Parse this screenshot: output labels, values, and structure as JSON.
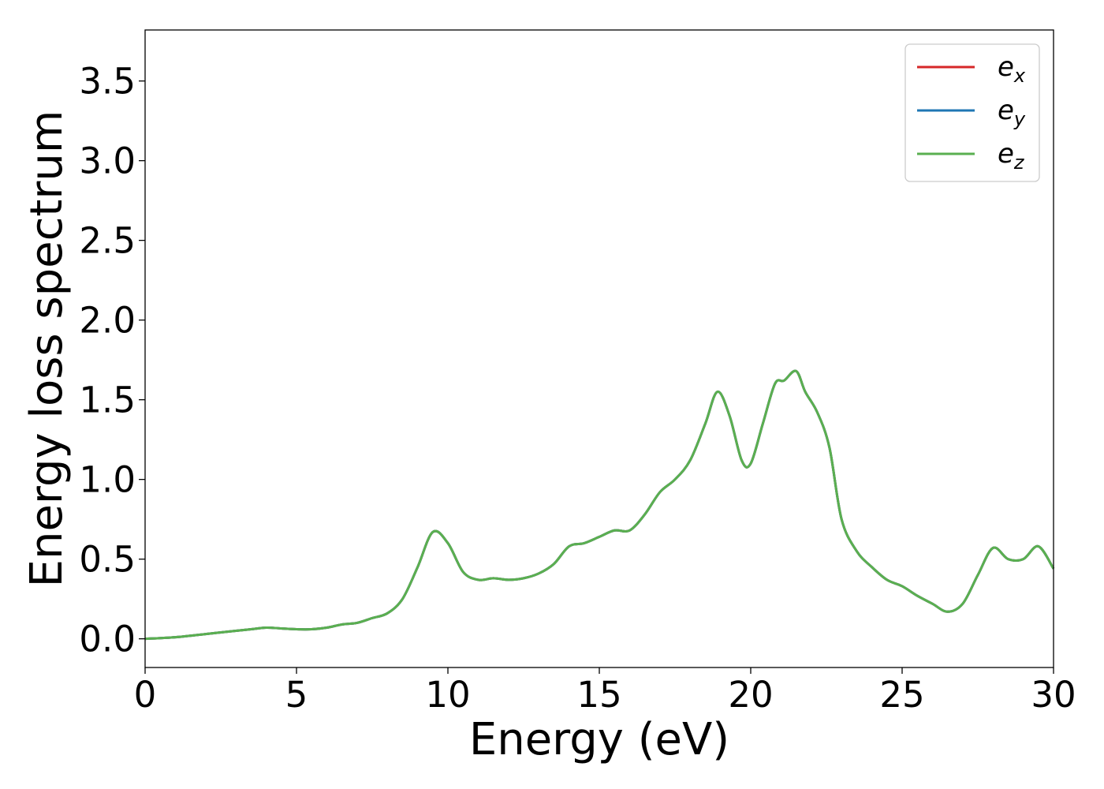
{
  "chart_data": {
    "type": "line",
    "title": "",
    "xlabel": "Energy (eV)",
    "ylabel": "Energy loss spectrum",
    "xlim": [
      0,
      30
    ],
    "ylim": [
      -0.18,
      3.82
    ],
    "xticks": [
      0,
      5,
      10,
      15,
      20,
      25,
      30
    ],
    "xtick_labels": [
      "0",
      "5",
      "10",
      "15",
      "20",
      "25",
      "30"
    ],
    "yticks": [
      0.0,
      0.5,
      1.0,
      1.5,
      2.0,
      2.5,
      3.0,
      3.5
    ],
    "ytick_labels": [
      "0.0",
      "0.5",
      "1.0",
      "1.5",
      "2.0",
      "2.5",
      "3.0",
      "3.5"
    ],
    "grid": false,
    "legend_position": "top-right",
    "x": [
      0,
      1,
      2,
      3,
      3.5,
      4,
      4.5,
      5,
      5.5,
      6,
      6.5,
      7,
      7.5,
      8,
      8.5,
      9,
      9.5,
      10,
      10.5,
      11,
      11.5,
      12,
      12.5,
      13,
      13.5,
      14,
      14.5,
      15,
      15.5,
      16,
      16.5,
      17,
      17.5,
      18,
      18.5,
      18.9,
      19.3,
      19.7,
      20,
      20.4,
      20.8,
      21.1,
      21.5,
      21.8,
      22.2,
      22.6,
      23,
      23.5,
      24,
      24.5,
      25,
      25.5,
      26,
      26.5,
      27,
      27.5,
      28,
      28.5,
      29,
      29.5,
      30
    ],
    "series": [
      {
        "name": "e_x",
        "legend_main": "e",
        "legend_sub": "x",
        "color": "#d62728",
        "values": [
          0.0,
          0.01,
          0.03,
          0.05,
          0.06,
          0.07,
          0.065,
          0.06,
          0.06,
          0.07,
          0.09,
          0.1,
          0.13,
          0.16,
          0.25,
          0.45,
          0.67,
          0.6,
          0.42,
          0.37,
          0.38,
          0.37,
          0.38,
          0.41,
          0.47,
          0.58,
          0.6,
          0.64,
          0.68,
          0.68,
          0.78,
          0.92,
          1.0,
          1.12,
          1.35,
          1.55,
          1.4,
          1.12,
          1.1,
          1.35,
          1.6,
          1.62,
          1.68,
          1.55,
          1.42,
          1.2,
          0.75,
          0.55,
          0.45,
          0.37,
          0.33,
          0.27,
          0.22,
          0.17,
          0.22,
          0.4,
          0.57,
          0.5,
          0.5,
          0.58,
          0.44
        ]
      },
      {
        "name": "e_y",
        "legend_main": "e",
        "legend_sub": "y",
        "color": "#1f77b4",
        "values": [
          0.0,
          0.01,
          0.03,
          0.05,
          0.06,
          0.07,
          0.065,
          0.06,
          0.06,
          0.07,
          0.09,
          0.1,
          0.13,
          0.16,
          0.25,
          0.45,
          0.67,
          0.6,
          0.42,
          0.37,
          0.38,
          0.37,
          0.38,
          0.41,
          0.47,
          0.58,
          0.6,
          0.64,
          0.68,
          0.68,
          0.78,
          0.92,
          1.0,
          1.12,
          1.35,
          1.55,
          1.4,
          1.12,
          1.1,
          1.35,
          1.6,
          1.62,
          1.68,
          1.55,
          1.42,
          1.2,
          0.75,
          0.55,
          0.45,
          0.37,
          0.33,
          0.27,
          0.22,
          0.17,
          0.22,
          0.4,
          0.57,
          0.5,
          0.5,
          0.58,
          0.44
        ]
      },
      {
        "name": "e_z",
        "legend_main": "e",
        "legend_sub": "z",
        "color": "#5aaf50",
        "values": [
          0.0,
          0.01,
          0.03,
          0.05,
          0.06,
          0.07,
          0.065,
          0.06,
          0.06,
          0.07,
          0.09,
          0.1,
          0.13,
          0.16,
          0.25,
          0.45,
          0.67,
          0.6,
          0.42,
          0.37,
          0.38,
          0.37,
          0.38,
          0.41,
          0.47,
          0.58,
          0.6,
          0.64,
          0.68,
          0.68,
          0.78,
          0.92,
          1.0,
          1.12,
          1.35,
          1.55,
          1.4,
          1.12,
          1.1,
          1.35,
          1.6,
          1.62,
          1.68,
          1.55,
          1.42,
          1.2,
          0.75,
          0.55,
          0.45,
          0.37,
          0.33,
          0.27,
          0.22,
          0.17,
          0.22,
          0.4,
          0.57,
          0.5,
          0.5,
          0.58,
          0.44
        ]
      }
    ]
  }
}
